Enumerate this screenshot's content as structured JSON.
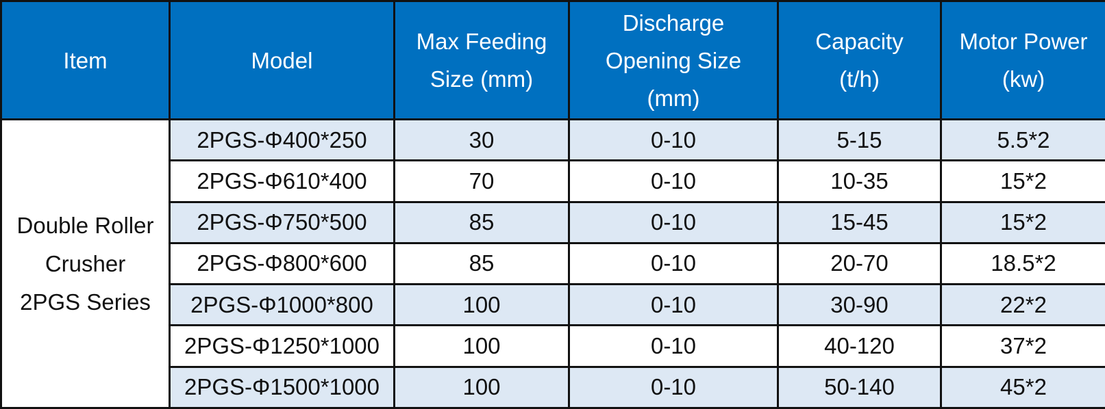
{
  "colors": {
    "header_bg": "#0070c0",
    "header_text": "#ffffff",
    "row_shaded": "#dde8f4",
    "row_plain": "#ffffff",
    "border": "#111111"
  },
  "headers": {
    "item": [
      "Item"
    ],
    "model": [
      "Model"
    ],
    "max_feeding": [
      "Max Feeding",
      "Size (mm)"
    ],
    "discharge": [
      "Discharge",
      "Opening Size",
      "(mm)"
    ],
    "capacity": [
      "Capacity",
      "(t/h)"
    ],
    "motor": [
      "Motor Power",
      "(kw)"
    ]
  },
  "item": [
    "Double Roller",
    "Crusher",
    "2PGS Series"
  ],
  "rows": [
    {
      "model": "2PGS-Φ400*250",
      "max_feeding": "30",
      "discharge": "0-10",
      "capacity": "5-15",
      "motor": "5.5*2"
    },
    {
      "model": "2PGS-Φ610*400",
      "max_feeding": "70",
      "discharge": "0-10",
      "capacity": "10-35",
      "motor": "15*2"
    },
    {
      "model": "2PGS-Φ750*500",
      "max_feeding": "85",
      "discharge": "0-10",
      "capacity": "15-45",
      "motor": "15*2"
    },
    {
      "model": "2PGS-Φ800*600",
      "max_feeding": "85",
      "discharge": "0-10",
      "capacity": "20-70",
      "motor": "18.5*2"
    },
    {
      "model": "2PGS-Φ1000*800",
      "max_feeding": "100",
      "discharge": "0-10",
      "capacity": "30-90",
      "motor": "22*2"
    },
    {
      "model": "2PGS-Φ1250*1000",
      "max_feeding": "100",
      "discharge": "0-10",
      "capacity": "40-120",
      "motor": "37*2"
    },
    {
      "model": "2PGS-Φ1500*1000",
      "max_feeding": "100",
      "discharge": "0-10",
      "capacity": "50-140",
      "motor": "45*2"
    }
  ]
}
